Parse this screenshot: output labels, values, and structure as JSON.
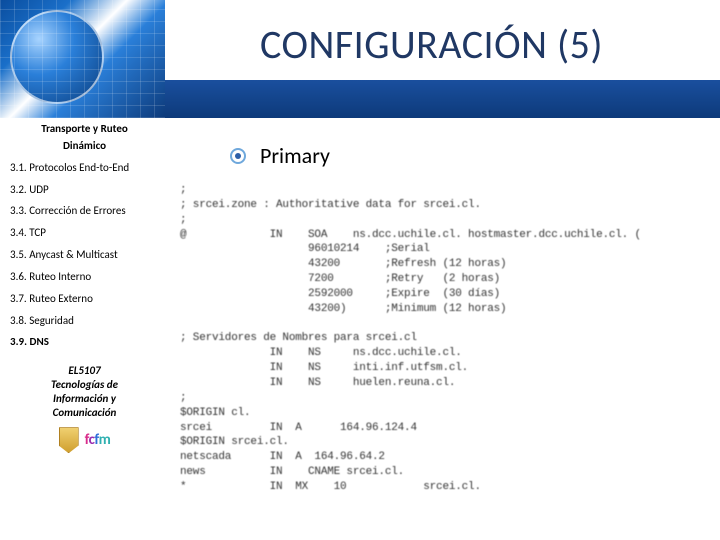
{
  "colors": {
    "title": "#203864",
    "bullet_ring": "#6fa8dc",
    "bullet_dot": "#2d5fa8",
    "text": "#000000"
  },
  "title": "CONFIGURACIÓN (5)",
  "sidebar": {
    "section_head_1": "Transporte y Ruteo",
    "section_head_2": "Dinámico",
    "items": [
      {
        "label": "3.1. Protocolos End-to-End",
        "bold": false
      },
      {
        "label": "3.2. UDP",
        "bold": false
      },
      {
        "label": "3.3. Corrección de Errores",
        "bold": false
      },
      {
        "label": "3.4. TCP",
        "bold": false
      },
      {
        "label": "3.5. Anycast & Multicast",
        "bold": false
      },
      {
        "label": "3.6. Ruteo Interno",
        "bold": false
      },
      {
        "label": "3.7. Ruteo Externo",
        "bold": false
      },
      {
        "label": "3.8. Seguridad",
        "bold": false
      },
      {
        "label": "3.9. DNS",
        "bold": true
      }
    ],
    "course_line1": "EL5107",
    "course_line2": "Tecnologías de",
    "course_line3": "Información y",
    "course_line4": "Comunicación"
  },
  "bullet_label": "Primary",
  "zone_lines": [
    ";",
    "; srcei.zone : Authoritative data for srcei.cl.",
    ";",
    "@             IN    SOA    ns.dcc.uchile.cl. hostmaster.dcc.uchile.cl. (",
    "                    96010214    ;Serial",
    "                    43200       ;Refresh (12 horas)",
    "                    7200        ;Retry   (2 horas)",
    "                    2592000     ;Expire  (30 días)",
    "                    43200)      ;Minimum (12 horas)",
    "",
    "; Servidores de Nombres para srcei.cl",
    "              IN    NS     ns.dcc.uchile.cl.",
    "              IN    NS     inti.inf.utfsm.cl.",
    "              IN    NS     huelen.reuna.cl.",
    ";",
    "$ORIGIN cl.",
    "srcei         IN  A      164.96.124.4",
    "$ORIGIN srcei.cl.",
    "netscada      IN  A  164.96.64.2",
    "news          IN    CNAME srcei.cl.",
    "*             IN  MX    10            srcei.cl."
  ]
}
